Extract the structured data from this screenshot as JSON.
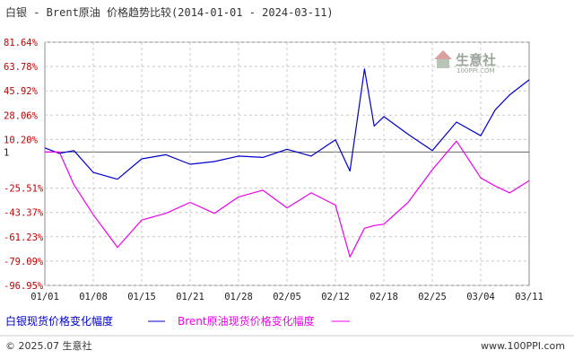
{
  "chart_data": {
    "type": "line",
    "title": "白银 - Brent原油 价格趋势比较(2014-01-01 - 2024-03-11)",
    "y_tick_labels": [
      "81.64%",
      "63.78%",
      "45.92%",
      "28.06%",
      "10.20%",
      "1",
      "-25.51%",
      "-43.37%",
      "-61.23%",
      "-79.09%",
      "-96.95%"
    ],
    "y_tick_values": [
      81.64,
      63.78,
      45.92,
      28.06,
      10.2,
      1,
      -25.51,
      -43.37,
      -61.23,
      -79.09,
      -96.95
    ],
    "ylim": [
      -96.95,
      81.64
    ],
    "x_tick_labels": [
      "01/01",
      "01/08",
      "01/15",
      "01/21",
      "01/28",
      "02/05",
      "02/12",
      "02/18",
      "02/25",
      "03/04",
      "03/11"
    ],
    "x": [
      0,
      0.3,
      0.6,
      1,
      1.5,
      2,
      2.5,
      3,
      3.5,
      4,
      4.5,
      5,
      5.5,
      6,
      6.3,
      6.6,
      6.8,
      7,
      7.5,
      8,
      8.5,
      9,
      9.3,
      9.6,
      10
    ],
    "series": [
      {
        "name": "白银现货价格变化幅度",
        "color": "#0000cc",
        "values": [
          4,
          0,
          2,
          -14,
          -19,
          -4,
          -1,
          -8,
          -6,
          -2,
          -3,
          3,
          -2,
          10,
          -13,
          62,
          20,
          27,
          14,
          2,
          23,
          13,
          32,
          43,
          54
        ]
      },
      {
        "name": "Brent原油现货价格变化幅度",
        "color": "#ee00ee",
        "values": [
          1,
          1,
          -23,
          -45,
          -69,
          -49,
          -44,
          -36,
          -44,
          -32,
          -27,
          -40,
          -29,
          -38,
          -76,
          -55,
          -53,
          -52,
          -36,
          -12,
          9,
          -18,
          -24,
          -29,
          -20
        ]
      }
    ]
  },
  "legend": {
    "items": [
      {
        "label": "白银现货价格变化幅度",
        "color": "#0000cc"
      },
      {
        "label": "Brent原油现货价格变化幅度",
        "color": "#ee00ee"
      }
    ]
  },
  "logo": {
    "text": "生意社",
    "sub": "100PPI.COM"
  },
  "footer": {
    "left": "© 2025.07 生意社",
    "right": "www.100PPI.com"
  }
}
